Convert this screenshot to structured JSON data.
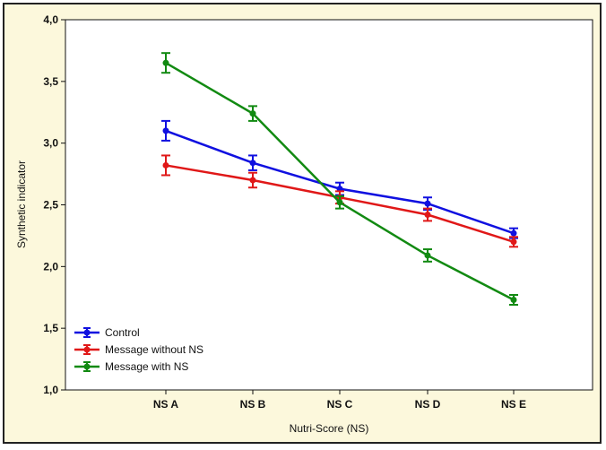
{
  "chart_data": {
    "type": "line",
    "title": "",
    "xlabel": "Nutri-Score (NS)",
    "ylabel": "Synthetic indicator",
    "categories": [
      "NS A",
      "NS B",
      "NS C",
      "NS D",
      "NS E"
    ],
    "ylim": [
      1.0,
      4.0
    ],
    "yticks": [
      1.0,
      1.5,
      2.0,
      2.5,
      3.0,
      3.5,
      4.0
    ],
    "ytick_labels": [
      "1,0",
      "1,5",
      "2,0",
      "2,5",
      "3,0",
      "3,5",
      "4,0"
    ],
    "grid": false,
    "legend_position": "bottom-left",
    "series": [
      {
        "name": "Control",
        "color": "#1010e0",
        "values": [
          3.1,
          2.84,
          2.63,
          2.51,
          2.27
        ],
        "error": [
          0.08,
          0.06,
          0.05,
          0.05,
          0.04
        ]
      },
      {
        "name": "Message without NS",
        "color": "#e01818",
        "values": [
          2.82,
          2.7,
          2.56,
          2.42,
          2.2
        ],
        "error": [
          0.08,
          0.06,
          0.05,
          0.05,
          0.04
        ]
      },
      {
        "name": "Message with NS",
        "color": "#128a12",
        "values": [
          3.65,
          3.24,
          2.52,
          2.09,
          1.73
        ],
        "error": [
          0.08,
          0.06,
          0.05,
          0.05,
          0.04
        ]
      }
    ]
  }
}
